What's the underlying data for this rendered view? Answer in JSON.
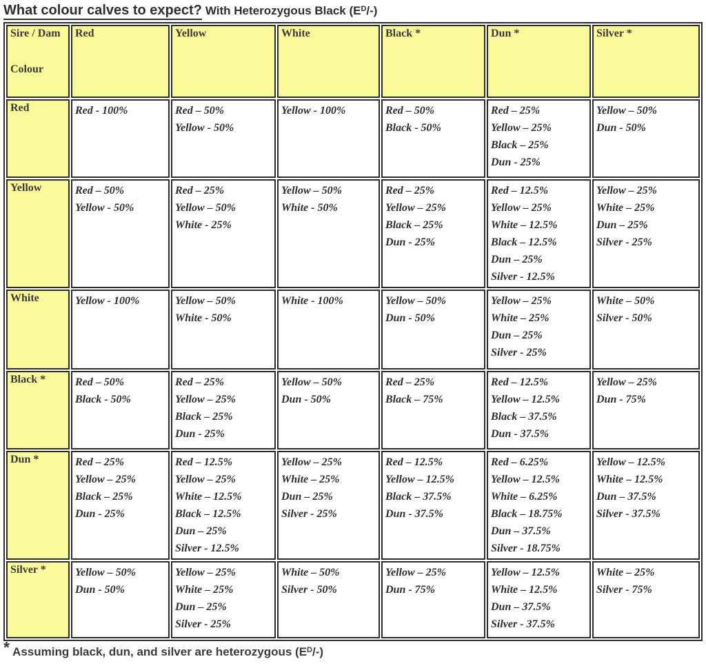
{
  "title": {
    "main": "What colour calves to expect?",
    "suffix_pre": "With Heterozygous Black (E",
    "sup": "D",
    "suffix_post": "/-)"
  },
  "table": {
    "corner": {
      "line1": "Sire / Dam",
      "line2": "Colour"
    },
    "column_headers": [
      "Red",
      "Yellow",
      "White",
      "Black *",
      "Dun *",
      "Silver *"
    ],
    "rows": [
      {
        "label": "Red",
        "cells": [
          [
            "Red - 100%"
          ],
          [
            "Red – 50%",
            "Yellow - 50%"
          ],
          [
            "Yellow - 100%"
          ],
          [
            "Red – 50%",
            "Black - 50%"
          ],
          [
            "Red – 25%",
            "Yellow – 25%",
            "Black – 25%",
            "Dun - 25%"
          ],
          [
            "Yellow – 50%",
            "Dun - 50%"
          ]
        ]
      },
      {
        "label": "Yellow",
        "cells": [
          [
            "Red – 50%",
            "Yellow - 50%"
          ],
          [
            "Red – 25%",
            "Yellow – 50%",
            "White - 25%"
          ],
          [
            "Yellow – 50%",
            "White - 50%"
          ],
          [
            "Red – 25%",
            "Yellow – 25%",
            "Black – 25%",
            "Dun - 25%"
          ],
          [
            "Red – 12.5%",
            "Yellow – 25%",
            "White – 12.5%",
            "Black – 12.5%",
            "Dun – 25%",
            "Silver - 12.5%"
          ],
          [
            "Yellow – 25%",
            "White – 25%",
            "Dun – 25%",
            "Silver - 25%"
          ]
        ]
      },
      {
        "label": "White",
        "cells": [
          [
            "Yellow - 100%"
          ],
          [
            "Yellow – 50%",
            "White - 50%"
          ],
          [
            "White - 100%"
          ],
          [
            "Yellow – 50%",
            "Dun - 50%"
          ],
          [
            "Yellow – 25%",
            "White – 25%",
            "Dun – 25%",
            "Silver - 25%"
          ],
          [
            "White – 50%",
            "Silver - 50%"
          ]
        ]
      },
      {
        "label": "Black *",
        "cells": [
          [
            "Red – 50%",
            "Black - 50%"
          ],
          [
            "Red – 25%",
            "Yellow – 25%",
            "Black – 25%",
            "Dun - 25%"
          ],
          [
            "Yellow – 50%",
            "Dun - 50%"
          ],
          [
            "Red – 25%",
            "Black – 75%"
          ],
          [
            "Red – 12.5%",
            "Yellow – 12.5%",
            "Black – 37.5%",
            "Dun - 37.5%"
          ],
          [
            "Yellow – 25%",
            "Dun - 75%"
          ]
        ]
      },
      {
        "label": "Dun *",
        "cells": [
          [
            "Red – 25%",
            "Yellow – 25%",
            "Black – 25%",
            "Dun - 25%"
          ],
          [
            "Red – 12.5%",
            "Yellow – 25%",
            "White – 12.5%",
            "Black – 12.5%",
            "Dun – 25%",
            "Silver - 12.5%"
          ],
          [
            "Yellow – 25%",
            "White – 25%",
            "Dun – 25%",
            "Silver - 25%"
          ],
          [
            "Red – 12.5%",
            "Yellow – 12.5%",
            "Black – 37.5%",
            "Dun - 37.5%"
          ],
          [
            "Red – 6.25%",
            "Yellow – 12.5%",
            "White – 6.25%",
            "Black – 18.75%",
            "Dun – 37.5%",
            "Silver - 18.75%"
          ],
          [
            "Yellow – 12.5%",
            "White – 12.5%",
            "Dun – 37.5%",
            "Silver - 37.5%"
          ]
        ]
      },
      {
        "label": "Silver *",
        "cells": [
          [
            "Yellow – 50%",
            "Dun - 50%"
          ],
          [
            "Yellow – 25%",
            "White – 25%",
            "Dun – 25%",
            "Silver - 25%"
          ],
          [
            "White – 50%",
            "Silver - 50%"
          ],
          [
            "Yellow – 25%",
            "Dun - 75%"
          ],
          [
            "Yellow – 12.5%",
            "White – 12.5%",
            "Dun – 37.5%",
            "Silver - 37.5%"
          ],
          [
            "White – 25%",
            "Silver - 75%"
          ]
        ]
      }
    ]
  },
  "footnote": {
    "star": "*",
    "text_pre": " Assuming black, dun, and silver are heterozygous (E",
    "sup": "D",
    "text_post": "/-)"
  },
  "colors": {
    "header_yellow": "#fafa9b",
    "border_dark": "#2b2b2b",
    "text_dark": "#2e2e2e",
    "page_background": "#ffffff"
  }
}
